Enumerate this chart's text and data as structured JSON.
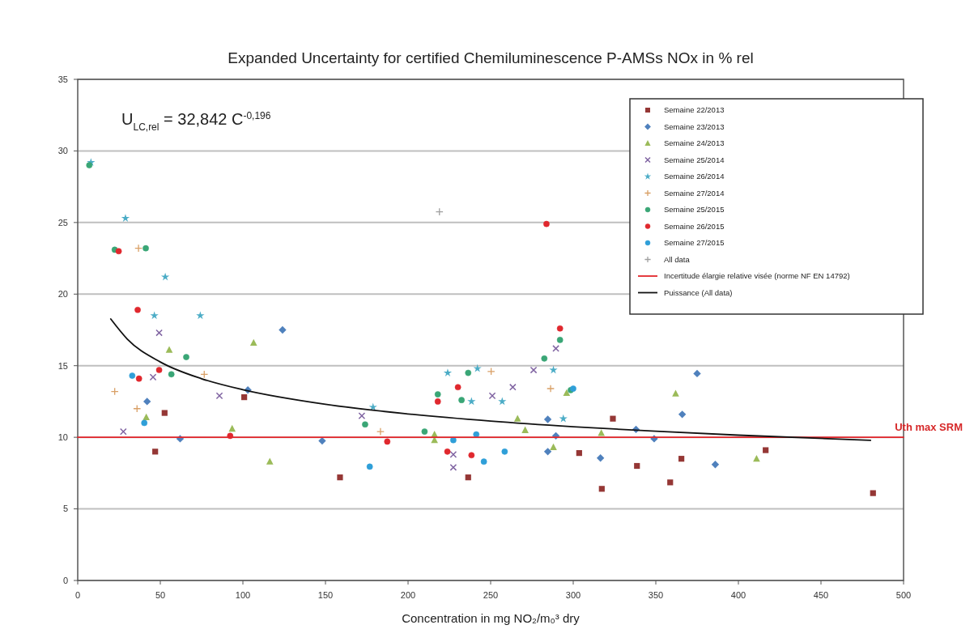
{
  "chart_data": {
    "type": "scatter",
    "title": "Expanded Uncertainty for certified Chemiluminescence P-AMSs NOx in % rel",
    "xlabel": "Concentration in mg NO₂/m₀³ dry",
    "xlim": [
      0,
      500
    ],
    "xticks": [
      0,
      50,
      100,
      150,
      200,
      250,
      300,
      350,
      400,
      450,
      500
    ],
    "ylim": [
      0,
      35
    ],
    "yticks": [
      0,
      5,
      10,
      15,
      20,
      25,
      30,
      35
    ],
    "grid": "y",
    "legend": "top right",
    "annotations": [
      "U$_{LC,rel}$ = 32,842 C$^{-0,196}$",
      {
        "text": "Uth max SRM",
        "x": 500,
        "y": 10
      }
    ],
    "series": [
      {
        "name": "Semaine 22/2013",
        "color": "#953735",
        "marker": "square",
        "x": [
          100.8,
          52.6,
          46.9,
          158.8,
          236.4,
          303.6,
          317.3,
          324,
          338.6,
          365.5,
          358.7,
          416.5,
          481.5
        ],
        "values": [
          12.8,
          11.7,
          9.0,
          7.2,
          7.2,
          8.9,
          6.4,
          11.3,
          8.0,
          8.5,
          6.85,
          9.1,
          6.1
        ]
      },
      {
        "name": "Semaine 23/2013",
        "color": "#4f81bd",
        "marker": "diamond",
        "x": [
          124,
          103,
          42,
          148,
          62,
          284.6,
          284.6,
          316.5,
          375,
          366,
          338,
          349,
          386,
          289.5
        ],
        "values": [
          17.5,
          13.3,
          12.5,
          9.75,
          9.9,
          11.25,
          9.0,
          8.55,
          14.45,
          11.6,
          10.55,
          9.9,
          8.1,
          10.1
        ]
      },
      {
        "name": "Semaine 24/2013",
        "color": "#9bbb59",
        "marker": "triangle",
        "x": [
          55.4,
          106.5,
          41.5,
          93.5,
          116.3,
          266.3,
          270.9,
          216,
          216,
          296,
          288,
          362,
          411,
          317
        ],
        "values": [
          16.1,
          16.6,
          11.4,
          10.6,
          8.3,
          11.3,
          10.5,
          10.2,
          9.8,
          13.1,
          9.3,
          13.05,
          8.5,
          10.3
        ]
      },
      {
        "name": "Semaine 25/2014",
        "color": "#8064a2",
        "marker": "cross",
        "x": [
          49.3,
          45.6,
          85.8,
          27.6,
          289.5,
          276,
          263.4,
          251,
          172,
          227.4,
          227.4
        ],
        "values": [
          17.3,
          14.2,
          12.9,
          10.4,
          16.2,
          14.7,
          13.5,
          12.9,
          11.5,
          8.8,
          7.9
        ]
      },
      {
        "name": "Semaine 26/2014",
        "color": "#4bacc6",
        "marker": "star",
        "x": [
          8,
          28.9,
          53,
          46.4,
          74.2,
          224,
          242,
          288,
          238.4,
          257,
          178.8,
          294
        ],
        "values": [
          29.2,
          25.3,
          21.2,
          18.5,
          18.5,
          14.5,
          14.8,
          14.7,
          12.5,
          12.5,
          12.1,
          11.3
        ]
      },
      {
        "name": "Semaine 27/2014",
        "color": "#d9a066",
        "marker": "plus",
        "x": [
          36.8,
          76.6,
          22.4,
          35.9,
          250.3,
          286.3,
          183.3
        ],
        "values": [
          23.2,
          14.4,
          13.2,
          12.0,
          14.6,
          13.4,
          10.4
        ]
      },
      {
        "name": "Semaine 25/2015",
        "color": "#3aa676",
        "marker": "circle",
        "x": [
          7,
          22.4,
          41.2,
          65.7,
          56.7,
          282.5,
          292,
          236.4,
          298.5,
          218,
          232.4,
          174,
          210
        ],
        "values": [
          29.0,
          23.1,
          23.2,
          15.6,
          14.4,
          15.5,
          16.8,
          14.5,
          13.3,
          13.0,
          12.6,
          10.9,
          10.4
        ]
      },
      {
        "name": "Semaine 26/2015",
        "color": "#e0282e",
        "marker": "circle",
        "x": [
          24.8,
          36.3,
          49.3,
          37.1,
          92.3,
          283.8,
          292,
          230.2,
          218,
          187.4,
          223.8,
          238.4
        ],
        "values": [
          23.0,
          18.9,
          14.7,
          14.1,
          10.1,
          24.9,
          17.6,
          13.5,
          12.5,
          9.7,
          9.0,
          8.75
        ]
      },
      {
        "name": "Semaine 27/2015",
        "color": "#2f9fd8",
        "marker": "circle",
        "x": [
          33,
          40.3,
          176.8,
          227.4,
          241.3,
          245.9,
          258.5,
          300
        ],
        "values": [
          14.3,
          11.0,
          7.95,
          9.8,
          10.2,
          8.3,
          9.0,
          13.4
        ]
      },
      {
        "name": "All data",
        "color": "#a0a0a0",
        "marker": "plus",
        "x": [
          219
        ],
        "values": [
          25.75
        ]
      },
      {
        "name": "Incertitude élargie relative visée (norme NF EN 14792)",
        "type": "line",
        "color": "#e3262b",
        "marker": "none",
        "x": [
          0,
          500
        ],
        "values": [
          10,
          10
        ]
      },
      {
        "name": "Puissance (All data)",
        "type": "line",
        "color": "#111111",
        "marker": "none",
        "x": [
          20,
          30,
          50,
          75,
          100,
          150,
          200,
          250,
          300,
          350,
          400,
          480
        ],
        "values": [
          18.26,
          16.86,
          15.26,
          14.09,
          13.32,
          12.3,
          11.63,
          11.13,
          10.74,
          10.42,
          10.15,
          9.79
        ]
      }
    ]
  }
}
